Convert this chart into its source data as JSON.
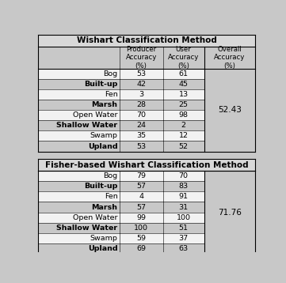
{
  "table1_title": "Wishart Classification Method",
  "table2_title": "Fisher-based Wishart Classification Method",
  "col_headers": [
    "Producer\nAccuracy\n(%)",
    "User\nAccuracy\n(%)",
    "Overall\nAccuracy\n(%)"
  ],
  "table1_rows": [
    [
      "Bog",
      "53",
      "61",
      ""
    ],
    [
      "Built-up",
      "42",
      "45",
      "52.43"
    ],
    [
      "Fen",
      "3",
      "13",
      ""
    ],
    [
      "Marsh",
      "28",
      "25",
      ""
    ],
    [
      "Open Water",
      "70",
      "98",
      ""
    ],
    [
      "Shallow Water",
      "24",
      "2",
      ""
    ],
    [
      "Swamp",
      "35",
      "12",
      ""
    ],
    [
      "Upland",
      "53",
      "52",
      ""
    ]
  ],
  "table2_rows": [
    [
      "Bog",
      "79",
      "70",
      ""
    ],
    [
      "Built-up",
      "57",
      "83",
      "71.76"
    ],
    [
      "Fen",
      "4",
      "91",
      ""
    ],
    [
      "Marsh",
      "57",
      "31",
      ""
    ],
    [
      "Open Water",
      "99",
      "100",
      ""
    ],
    [
      "Shallow Water",
      "100",
      "51",
      ""
    ],
    [
      "Swamp",
      "59",
      "37",
      ""
    ],
    [
      "Upland",
      "69",
      "63",
      ""
    ]
  ],
  "t1_bold_rows": [
    1,
    3,
    5,
    7
  ],
  "t2_bold_rows": [
    1,
    3,
    5,
    7
  ],
  "shaded_color": "#c8c8c8",
  "white_color": "#f2f2f2",
  "bg_color": "#c8c8c8",
  "title_bg": "#d8d8d8",
  "overall_col_bg": "#c8c8c8",
  "t1_overall_row": 1,
  "t2_overall_row": 1,
  "overall1": "52.43",
  "overall2": "71.76"
}
